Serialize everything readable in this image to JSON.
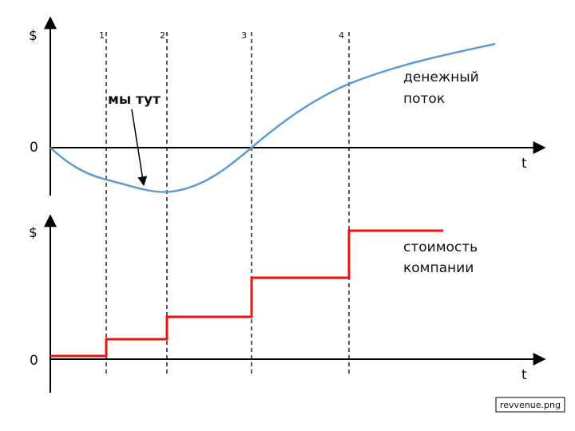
{
  "top_panel": {
    "y_axis_label": "$",
    "zero_label": "0",
    "x_axis_label": "t",
    "curve_label": [
      "денежный",
      "поток"
    ],
    "annotation": "мы тут"
  },
  "bottom_panel": {
    "y_axis_label": "$",
    "zero_label": "0",
    "x_axis_label": "t",
    "curve_label": [
      "стоимость",
      "компании"
    ]
  },
  "stage_markers": [
    "1",
    "2",
    "3",
    "4"
  ],
  "file_label": "revvenue.png"
}
